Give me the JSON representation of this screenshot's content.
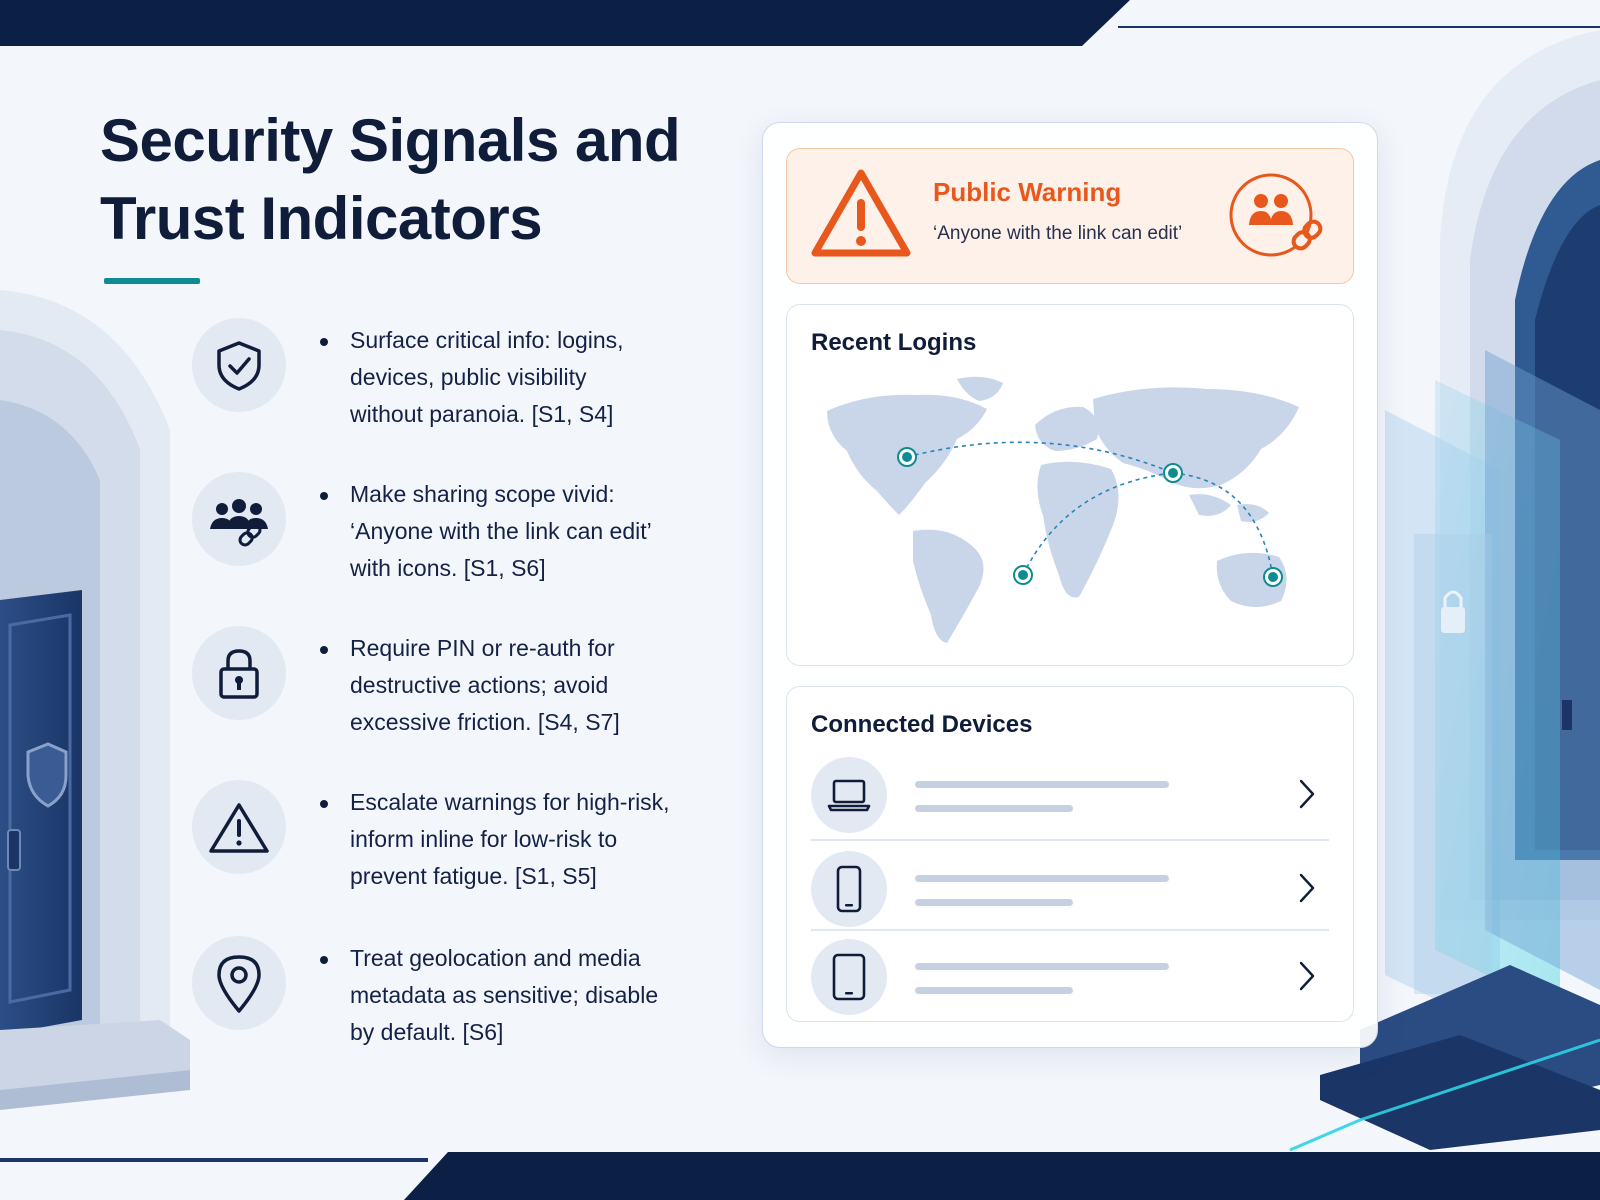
{
  "header": {
    "title_line1": "Security Signals and",
    "title_line2": "Trust Indicators"
  },
  "points": [
    {
      "icon": "shield-check-icon",
      "lines": [
        "Surface critical info: logins,",
        "devices, public visibility",
        "without paranoia. [S1, S4]"
      ]
    },
    {
      "icon": "users-link-icon",
      "lines": [
        "Make sharing scope vivid:",
        "‘Anyone with the link can edit’",
        "with icons. [S1, S6]"
      ]
    },
    {
      "icon": "lock-icon",
      "lines": [
        "Require PIN or re-auth for",
        "destructive actions; avoid",
        "excessive friction. [S4, S7]"
      ]
    },
    {
      "icon": "warning-icon",
      "lines": [
        "Escalate warnings for high-risk,",
        "inform inline for low-risk to",
        "prevent fatigue. [S1, S5]"
      ]
    },
    {
      "icon": "location-pin-icon",
      "lines": [
        "Treat geolocation and media",
        "metadata as sensitive; disable",
        "by default. [S6]"
      ]
    }
  ],
  "warning": {
    "title": "Public Warning",
    "text": "‘Anyone with the link can edit’",
    "accent_color": "#e8581c"
  },
  "recent_logins": {
    "title": "Recent Logins"
  },
  "connected_devices": {
    "title": "Connected Devices",
    "devices": [
      {
        "icon": "laptop-icon"
      },
      {
        "icon": "phone-icon"
      },
      {
        "icon": "tablet-icon"
      }
    ]
  },
  "colors": {
    "navy": "#0f1d3a",
    "teal": "#0f8c93",
    "warning_orange": "#e8581c"
  }
}
